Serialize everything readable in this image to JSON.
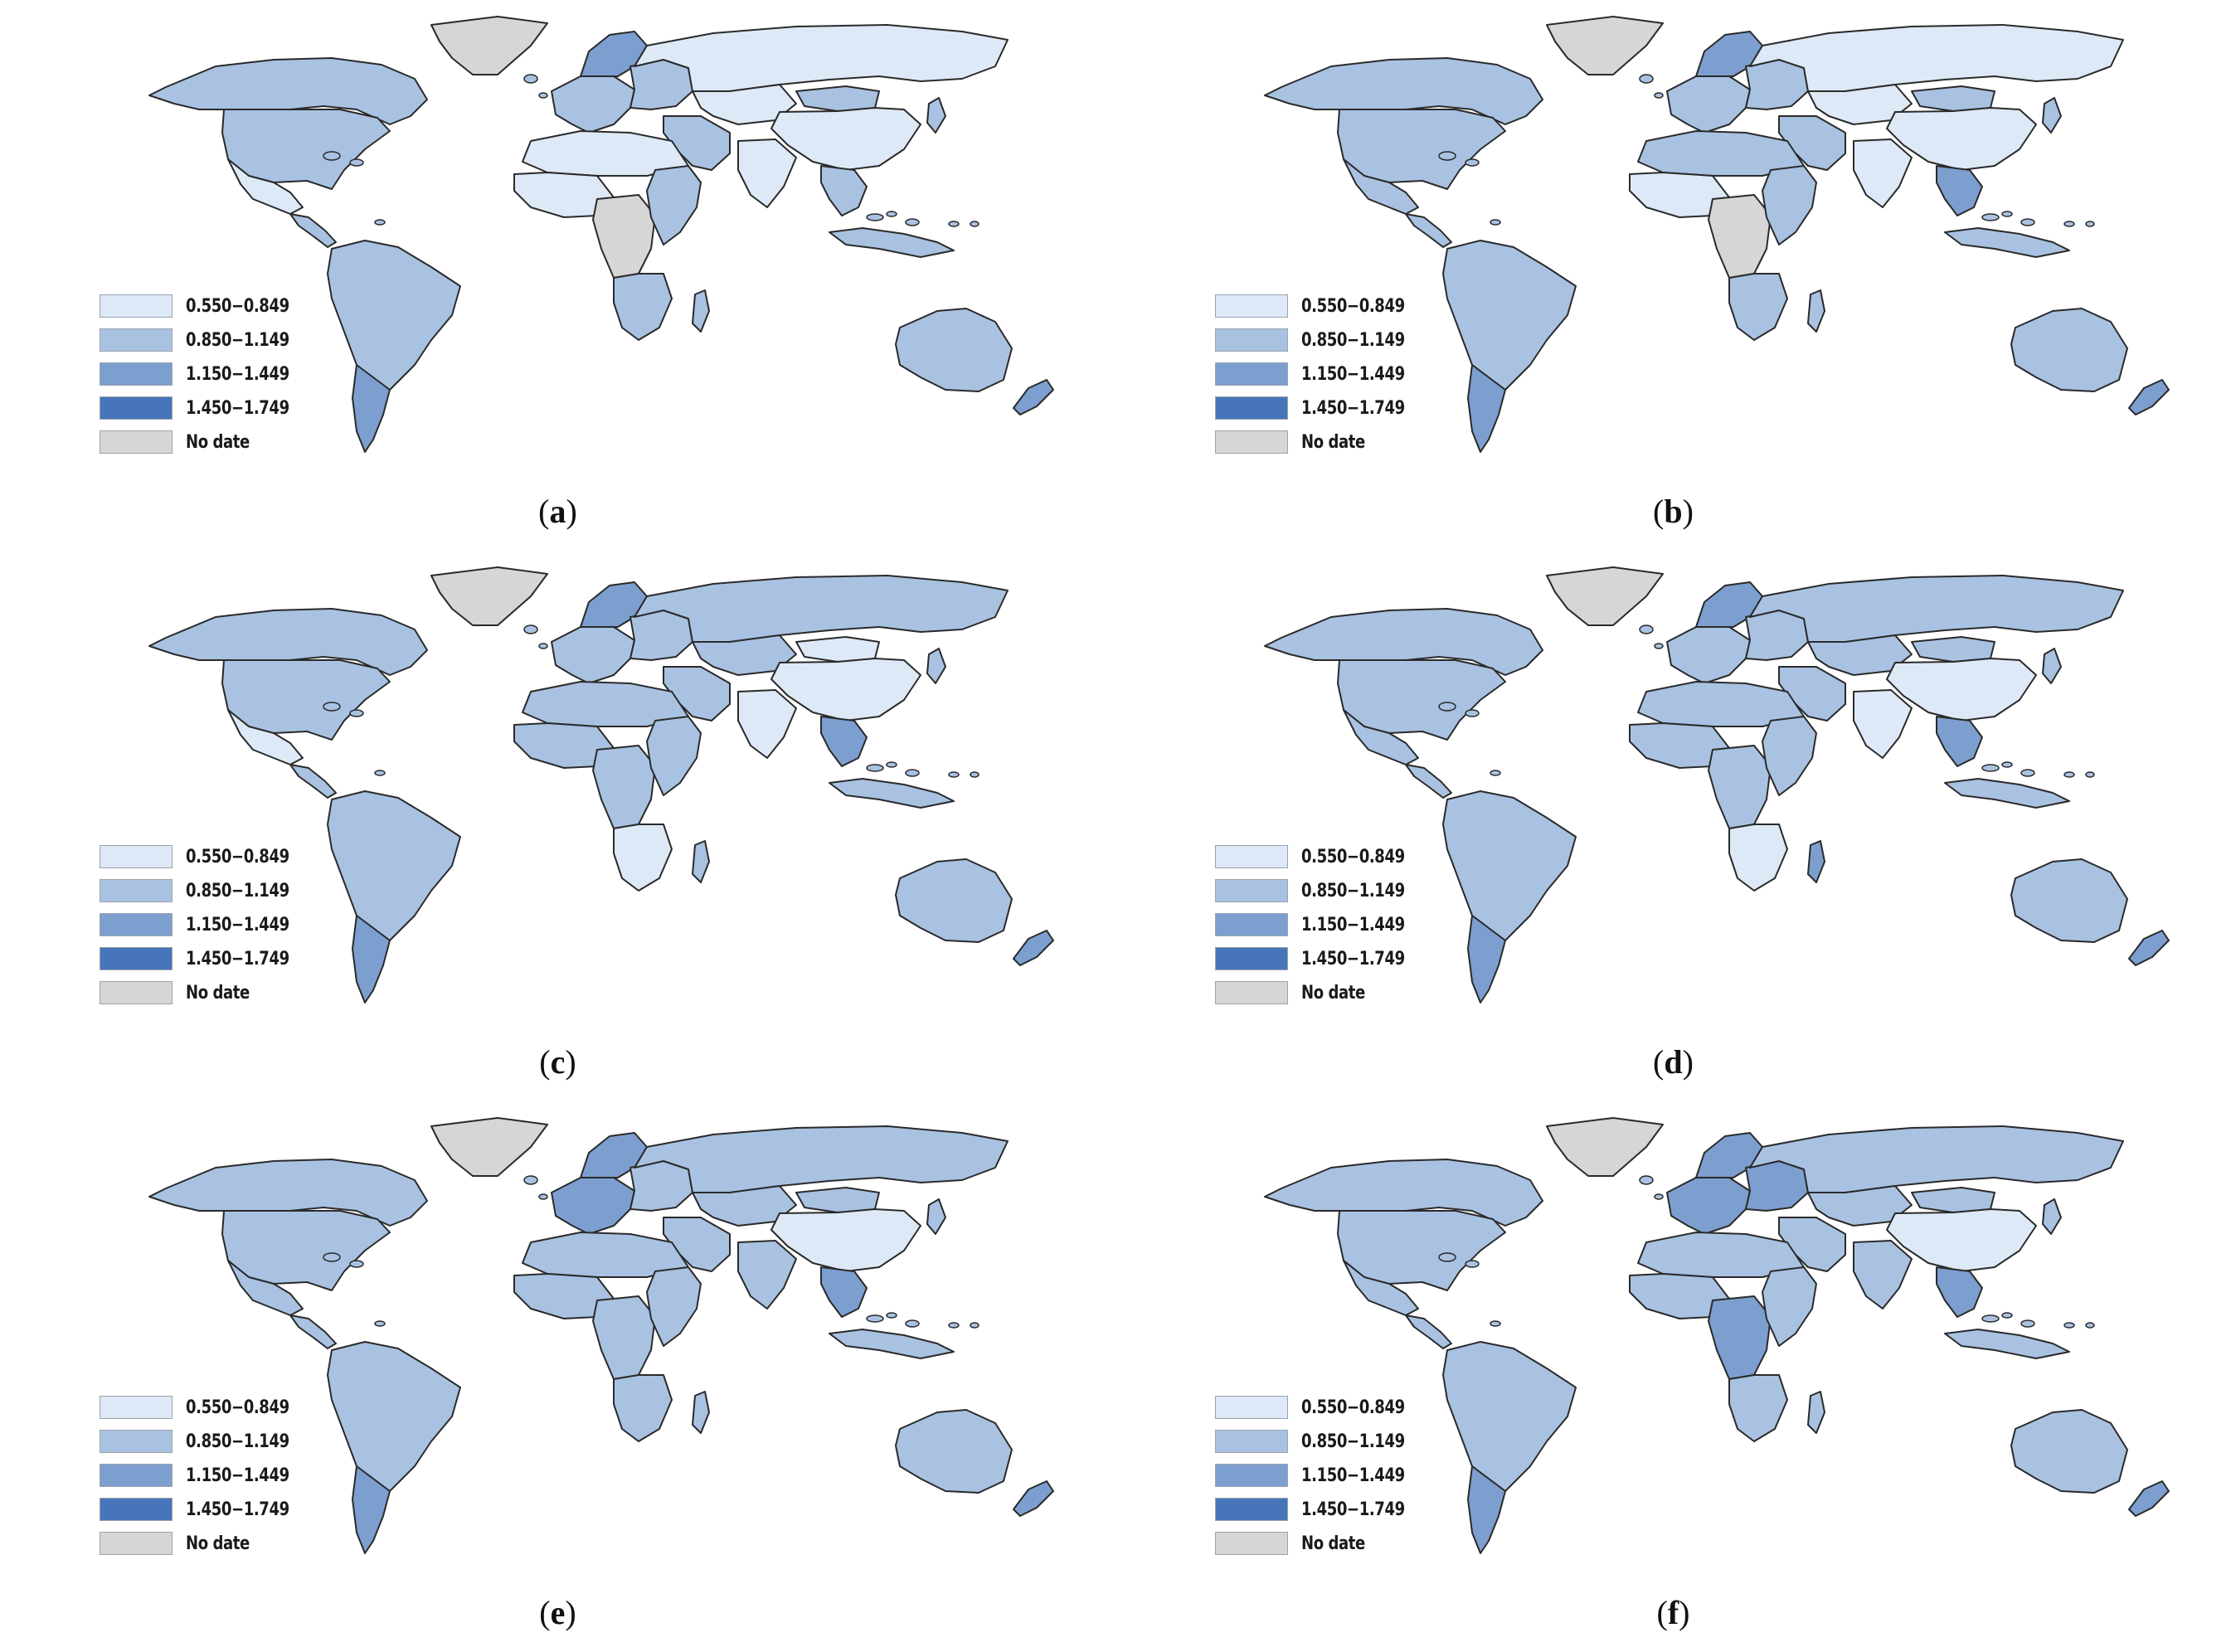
{
  "colors": {
    "c1": "#dde9f6",
    "c2": "#a9c2e2",
    "c3": "#7c9fd0",
    "c4": "#4675ba",
    "nodata": "#d6d6d6",
    "ocean": "#ffffff",
    "border": "#2a2a2a"
  },
  "legend": [
    {
      "label": "0.550−0.849",
      "color_key": "c1"
    },
    {
      "label": "0.850−1.149",
      "color_key": "c2"
    },
    {
      "label": "1.150−1.449",
      "color_key": "c3"
    },
    {
      "label": "1.450−1.749",
      "color_key": "c4"
    },
    {
      "label": "No date",
      "color_key": "nodata"
    }
  ],
  "panels": [
    {
      "letter": "a",
      "regions": {
        "greenland": "nodata",
        "canada": "c2",
        "usa": "c2",
        "mexico": "c1",
        "central_america": "c2",
        "south_america": "c2",
        "southern_cone": "c3",
        "europe_west": "c2",
        "scandinavia": "c3",
        "eastern_europe": "c2",
        "russia": "c1",
        "middle_east": "c2",
        "central_asia": "c1",
        "mongolia": "c2",
        "china": "c1",
        "india": "c1",
        "se_asia": "c2",
        "indonesia": "c2",
        "japan": "c2",
        "north_africa": "c1",
        "west_africa": "c1",
        "central_africa": "nodata",
        "east_africa": "c2",
        "southern_africa": "c2",
        "madagascar": "c2",
        "australia": "c2",
        "new_zealand": "c3"
      }
    },
    {
      "letter": "b",
      "regions": {
        "greenland": "nodata",
        "canada": "c2",
        "usa": "c2",
        "mexico": "c2",
        "central_america": "c2",
        "south_america": "c2",
        "southern_cone": "c3",
        "europe_west": "c2",
        "scandinavia": "c3",
        "eastern_europe": "c2",
        "russia": "c1",
        "middle_east": "c2",
        "central_asia": "c1",
        "mongolia": "c2",
        "china": "c1",
        "india": "c1",
        "se_asia": "c3",
        "indonesia": "c2",
        "japan": "c2",
        "north_africa": "c2",
        "west_africa": "c1",
        "central_africa": "nodata",
        "east_africa": "c2",
        "southern_africa": "c2",
        "madagascar": "c2",
        "australia": "c2",
        "new_zealand": "c3"
      }
    },
    {
      "letter": "c",
      "regions": {
        "greenland": "nodata",
        "canada": "c2",
        "usa": "c2",
        "mexico": "c1",
        "central_america": "c2",
        "south_america": "c2",
        "southern_cone": "c3",
        "europe_west": "c2",
        "scandinavia": "c3",
        "eastern_europe": "c2",
        "russia": "c2",
        "middle_east": "c2",
        "central_asia": "c2",
        "mongolia": "c1",
        "china": "c1",
        "india": "c1",
        "se_asia": "c3",
        "indonesia": "c2",
        "japan": "c2",
        "north_africa": "c2",
        "west_africa": "c2",
        "central_africa": "c2",
        "east_africa": "c2",
        "southern_africa": "c1",
        "madagascar": "c2",
        "australia": "c2",
        "new_zealand": "c3"
      }
    },
    {
      "letter": "d",
      "regions": {
        "greenland": "nodata",
        "canada": "c2",
        "usa": "c2",
        "mexico": "c2",
        "central_america": "c2",
        "south_america": "c2",
        "southern_cone": "c3",
        "europe_west": "c2",
        "scandinavia": "c3",
        "eastern_europe": "c2",
        "russia": "c2",
        "middle_east": "c2",
        "central_asia": "c2",
        "mongolia": "c2",
        "china": "c1",
        "india": "c1",
        "se_asia": "c3",
        "indonesia": "c2",
        "japan": "c2",
        "north_africa": "c2",
        "west_africa": "c2",
        "central_africa": "c2",
        "east_africa": "c2",
        "southern_africa": "c1",
        "madagascar": "c3",
        "australia": "c2",
        "new_zealand": "c3"
      }
    },
    {
      "letter": "e",
      "regions": {
        "greenland": "nodata",
        "canada": "c2",
        "usa": "c2",
        "mexico": "c2",
        "central_america": "c2",
        "south_america": "c2",
        "southern_cone": "c3",
        "europe_west": "c3",
        "scandinavia": "c3",
        "eastern_europe": "c2",
        "russia": "c2",
        "middle_east": "c2",
        "central_asia": "c2",
        "mongolia": "c2",
        "china": "c1",
        "india": "c2",
        "se_asia": "c3",
        "indonesia": "c2",
        "japan": "c2",
        "north_africa": "c2",
        "west_africa": "c2",
        "central_africa": "c2",
        "east_africa": "c2",
        "southern_africa": "c2",
        "madagascar": "c2",
        "australia": "c2",
        "new_zealand": "c3"
      }
    },
    {
      "letter": "f",
      "regions": {
        "greenland": "nodata",
        "canada": "c2",
        "usa": "c2",
        "mexico": "c2",
        "central_america": "c2",
        "south_america": "c2",
        "southern_cone": "c3",
        "europe_west": "c3",
        "scandinavia": "c3",
        "eastern_europe": "c3",
        "russia": "c2",
        "middle_east": "c2",
        "central_asia": "c2",
        "mongolia": "c2",
        "china": "c1",
        "india": "c2",
        "se_asia": "c3",
        "indonesia": "c2",
        "japan": "c2",
        "north_africa": "c2",
        "west_africa": "c2",
        "central_africa": "c3",
        "east_africa": "c2",
        "southern_africa": "c2",
        "madagascar": "c2",
        "australia": "c2",
        "new_zealand": "c3"
      }
    }
  ]
}
